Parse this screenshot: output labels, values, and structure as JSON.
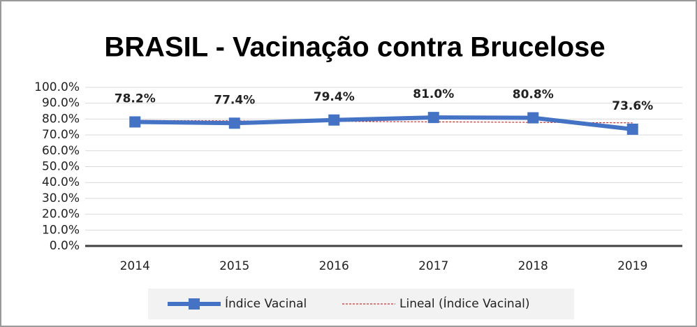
{
  "chart_data": {
    "type": "line",
    "title": "BRASIL - Vacinação contra Brucelose",
    "categories": [
      "2014",
      "2015",
      "2016",
      "2017",
      "2018",
      "2019"
    ],
    "series": [
      {
        "name": "Índice Vacinal",
        "color": "#4472c4",
        "values": [
          78.2,
          77.4,
          79.4,
          81.0,
          80.8,
          73.6
        ],
        "value_labels": [
          "78.2%",
          "77.4%",
          "79.4%",
          "81.0%",
          "80.8%",
          "73.6%"
        ]
      },
      {
        "name": "Lineal (Índice Vacinal)",
        "color": "#c00000",
        "dashed": true,
        "values": [
          79.2,
          78.88,
          78.56,
          78.24,
          77.92,
          77.6
        ]
      }
    ],
    "ylim": [
      0,
      100
    ],
    "yticks": [
      {
        "value": 0,
        "label": "0.0%"
      },
      {
        "value": 10,
        "label": "10.0%"
      },
      {
        "value": 20,
        "label": "20.0%"
      },
      {
        "value": 30,
        "label": "30.0%"
      },
      {
        "value": 40,
        "label": "40.0%"
      },
      {
        "value": 50,
        "label": "50.0%"
      },
      {
        "value": 60,
        "label": "60.0%"
      },
      {
        "value": 70,
        "label": "70.0%"
      },
      {
        "value": 80,
        "label": "80.0%"
      },
      {
        "value": 90,
        "label": "90.0%"
      },
      {
        "value": 100,
        "label": "100.0%"
      }
    ],
    "grid": true,
    "legend": "bottom"
  }
}
